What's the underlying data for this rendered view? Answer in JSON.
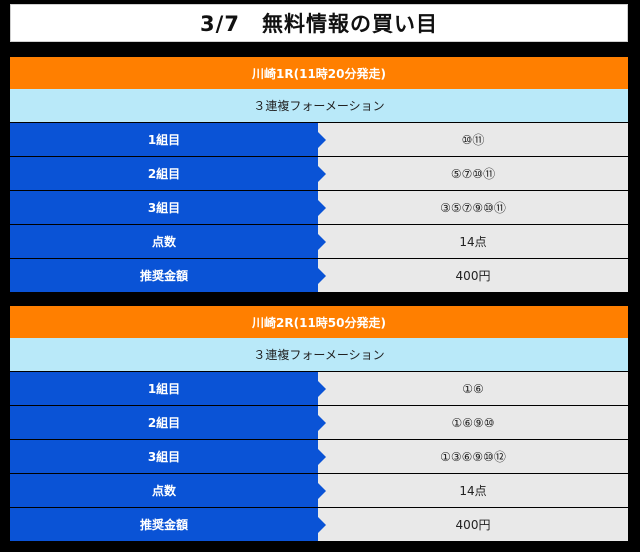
{
  "title": "3/7　無料情報の買い目",
  "races": [
    {
      "header": "川崎1R(11時20分発走)",
      "bet_type": "３連複フォーメーション",
      "rows": [
        {
          "label": "1組目",
          "value": "⑩⑪"
        },
        {
          "label": "2組目",
          "value": "⑤⑦⑩⑪"
        },
        {
          "label": "3組目",
          "value": "③⑤⑦⑨⑩⑪"
        },
        {
          "label": "点数",
          "value": "14点"
        },
        {
          "label": "推奨金額",
          "value": "400円"
        }
      ]
    },
    {
      "header": "川崎2R(11時50分発走)",
      "bet_type": "３連複フォーメーション",
      "rows": [
        {
          "label": "1組目",
          "value": "①⑥"
        },
        {
          "label": "2組目",
          "value": "①⑥⑨⑩"
        },
        {
          "label": "3組目",
          "value": "①③⑥⑨⑩⑫"
        },
        {
          "label": "点数",
          "value": "14点"
        },
        {
          "label": "推奨金額",
          "value": "400円"
        }
      ]
    }
  ],
  "colors": {
    "header_orange": "#ff7f00",
    "bet_type_lightblue": "#b9e9f9",
    "label_blue": "#0a53d6",
    "value_gray": "#e9e9e9"
  }
}
